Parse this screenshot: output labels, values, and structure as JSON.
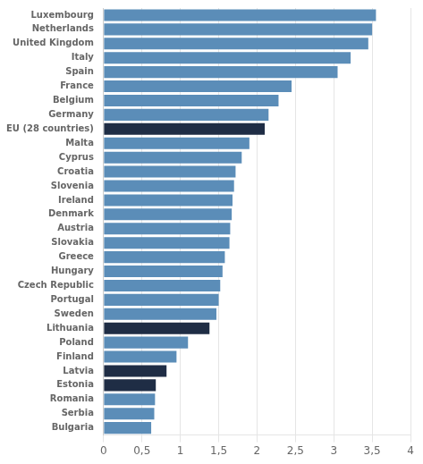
{
  "chart_data": {
    "type": "bar",
    "orientation": "horizontal",
    "categories": [
      "Luxembourg",
      "Netherlands",
      "United Kingdom",
      "Italy",
      "Spain",
      "France",
      "Belgium",
      "Germany",
      "EU (28 countries)",
      "Malta",
      "Cyprus",
      "Croatia",
      "Slovenia",
      "Ireland",
      "Denmark",
      "Austria",
      "Slovakia",
      "Greece",
      "Hungary",
      "Czech Republic",
      "Portugal",
      "Sweden",
      "Lithuania",
      "Poland",
      "Finland",
      "Latvia",
      "Estonia",
      "Romania",
      "Serbia",
      "Bulgaria"
    ],
    "values": [
      3.55,
      3.5,
      3.45,
      3.22,
      3.05,
      2.45,
      2.28,
      2.15,
      2.1,
      1.9,
      1.8,
      1.72,
      1.7,
      1.68,
      1.67,
      1.65,
      1.64,
      1.58,
      1.55,
      1.52,
      1.5,
      1.47,
      1.38,
      1.1,
      0.95,
      0.82,
      0.68,
      0.67,
      0.66,
      0.62
    ],
    "colors": [
      "#5b8db8",
      "#5b8db8",
      "#5b8db8",
      "#5b8db8",
      "#5b8db8",
      "#5b8db8",
      "#5b8db8",
      "#5b8db8",
      "#1f2d45",
      "#5b8db8",
      "#5b8db8",
      "#5b8db8",
      "#5b8db8",
      "#5b8db8",
      "#5b8db8",
      "#5b8db8",
      "#5b8db8",
      "#5b8db8",
      "#5b8db8",
      "#5b8db8",
      "#5b8db8",
      "#5b8db8",
      "#1f2d45",
      "#5b8db8",
      "#5b8db8",
      "#1f2d45",
      "#1f2d45",
      "#5b8db8",
      "#5b8db8",
      "#5b8db8"
    ],
    "xlim": [
      0,
      4
    ],
    "xticks": [
      0,
      {
        "value": 0.5,
        "label": "0,5"
      },
      1,
      {
        "value": 1.5,
        "label": "1,5"
      },
      2,
      {
        "value": 2.5,
        "label": "2,5"
      },
      3,
      {
        "value": 3.5,
        "label": "3,5"
      },
      4
    ],
    "grid": true
  }
}
